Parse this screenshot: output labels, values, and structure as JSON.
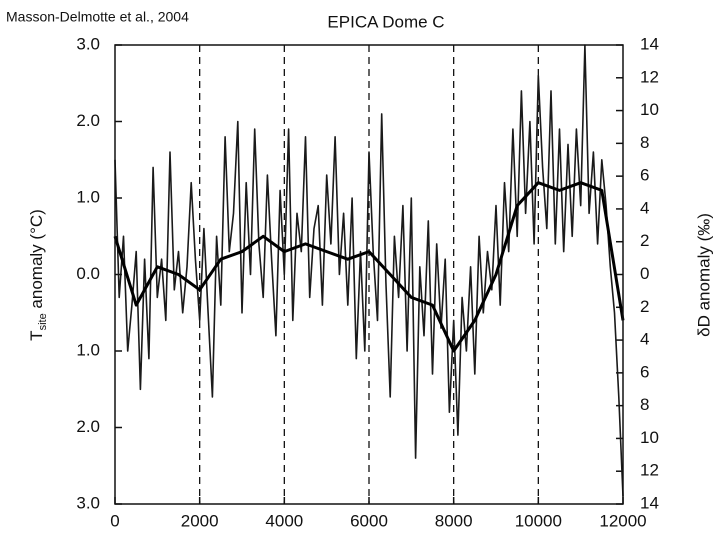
{
  "chart_data": {
    "type": "line",
    "title": "EPICA Dome C",
    "annotation": "Masson-Delmotte et al., 2004",
    "ylabel": {
      "main": "T",
      "sub": "site",
      "rest": " anomaly (°C)"
    },
    "y2label": "δD anomaly (‰)",
    "xlim": [
      0,
      12000
    ],
    "xticks": [
      0,
      2000,
      4000,
      6000,
      8000,
      10000,
      12000
    ],
    "ylim": [
      -3,
      3
    ],
    "yticks": [
      {
        "value": 3,
        "label": "3.0"
      },
      {
        "value": 2,
        "label": "2.0"
      },
      {
        "value": 1,
        "label": "1.0"
      },
      {
        "value": 0,
        "label": "0.0"
      },
      {
        "value": -1,
        "label": "1.0"
      },
      {
        "value": -2,
        "label": "2.0"
      },
      {
        "value": -3,
        "label": "3.0"
      }
    ],
    "y2lim": [
      -14,
      14
    ],
    "y2ticks": [
      14,
      12,
      10,
      8,
      6,
      4,
      2,
      0,
      {
        "value": -2,
        "label": "2"
      },
      {
        "value": -4,
        "label": "4"
      },
      {
        "value": -6,
        "label": "6"
      },
      {
        "value": -8,
        "label": "8"
      },
      {
        "value": -10,
        "label": "10"
      },
      {
        "value": -12,
        "label": "12"
      },
      {
        "value": -14,
        "label": "14"
      }
    ],
    "xgrid": true,
    "grid_style": "dashed",
    "series": [
      {
        "color": "#1a1a1a",
        "width": 1.6,
        "x": [
          0,
          100,
          200,
          300,
          400,
          500,
          600,
          700,
          800,
          900,
          1000,
          1100,
          1200,
          1300,
          1400,
          1500,
          1600,
          1700,
          1800,
          1900,
          2000,
          2100,
          2200,
          2300,
          2400,
          2500,
          2600,
          2700,
          2800,
          2900,
          3000,
          3100,
          3200,
          3300,
          3400,
          3500,
          3600,
          3700,
          3800,
          3900,
          4000,
          4100,
          4200,
          4300,
          4400,
          4500,
          4600,
          4700,
          4800,
          4900,
          5000,
          5100,
          5200,
          5300,
          5400,
          5500,
          5600,
          5700,
          5800,
          5900,
          6000,
          6100,
          6200,
          6300,
          6400,
          6500,
          6600,
          6700,
          6800,
          6900,
          7000,
          7100,
          7200,
          7300,
          7400,
          7500,
          7600,
          7700,
          7800,
          7900,
          8000,
          8100,
          8200,
          8300,
          8400,
          8500,
          8600,
          8700,
          8800,
          8900,
          9000,
          9100,
          9200,
          9300,
          9400,
          9500,
          9600,
          9700,
          9800,
          9900,
          10000,
          10100,
          10200,
          10300,
          10400,
          10500,
          10600,
          10700,
          10800,
          10900,
          11000,
          11100,
          11200,
          11300,
          11400,
          11500,
          11600,
          11700,
          11800,
          11900,
          12000
        ],
        "values": [
          1.5,
          -0.3,
          0.5,
          -1.0,
          -0.4,
          0.3,
          -1.5,
          0.2,
          -1.1,
          1.4,
          -0.3,
          0.2,
          -0.6,
          1.6,
          -0.2,
          0.3,
          -0.5,
          0.1,
          1.2,
          0.2,
          -0.6,
          0.6,
          -0.5,
          -1.6,
          0.5,
          -0.4,
          1.8,
          0.3,
          0.8,
          2.0,
          -0.5,
          1.2,
          0.0,
          1.9,
          0.4,
          -0.3,
          1.3,
          0.2,
          -0.8,
          1.1,
          0.0,
          1.9,
          -0.6,
          0.8,
          0.3,
          1.8,
          -0.3,
          0.6,
          0.9,
          -0.4,
          1.3,
          0.4,
          1.8,
          0.0,
          0.8,
          -0.4,
          1.0,
          -1.1,
          0.3,
          -1.0,
          1.6,
          0.3,
          -0.6,
          2.1,
          -0.1,
          -1.6,
          0.5,
          -0.3,
          0.9,
          -1.0,
          1.0,
          -2.4,
          0.1,
          -0.8,
          0.7,
          -1.3,
          0.4,
          -0.7,
          0.2,
          -1.8,
          -0.6,
          -2.1,
          -0.3,
          -1.0,
          0.1,
          -1.3,
          0.5,
          -0.5,
          0.3,
          -0.2,
          0.9,
          -0.4,
          1.2,
          0.3,
          1.9,
          0.5,
          2.4,
          0.8,
          2.0,
          0.4,
          2.6,
          1.4,
          0.6,
          2.4,
          0.4,
          1.9,
          0.3,
          1.7,
          0.5,
          1.9,
          0.9,
          3.0,
          0.8,
          1.6,
          0.4,
          1.5,
          0.9,
          0.1,
          -0.5,
          -1.6,
          -2.9
        ]
      },
      {
        "color": "#000000",
        "width": 3,
        "x": [
          0,
          500,
          1000,
          1500,
          2000,
          2500,
          3000,
          3500,
          4000,
          4500,
          5000,
          5500,
          6000,
          6500,
          7000,
          7500,
          8000,
          8500,
          9000,
          9500,
          10000,
          10500,
          11000,
          11500,
          12000
        ],
        "values": [
          0.5,
          -0.4,
          0.1,
          0.0,
          -0.2,
          0.2,
          0.3,
          0.5,
          0.3,
          0.4,
          0.3,
          0.2,
          0.3,
          0.0,
          -0.3,
          -0.4,
          -1.0,
          -0.6,
          0.0,
          0.9,
          1.2,
          1.1,
          1.2,
          1.1,
          -0.6
        ]
      }
    ]
  }
}
